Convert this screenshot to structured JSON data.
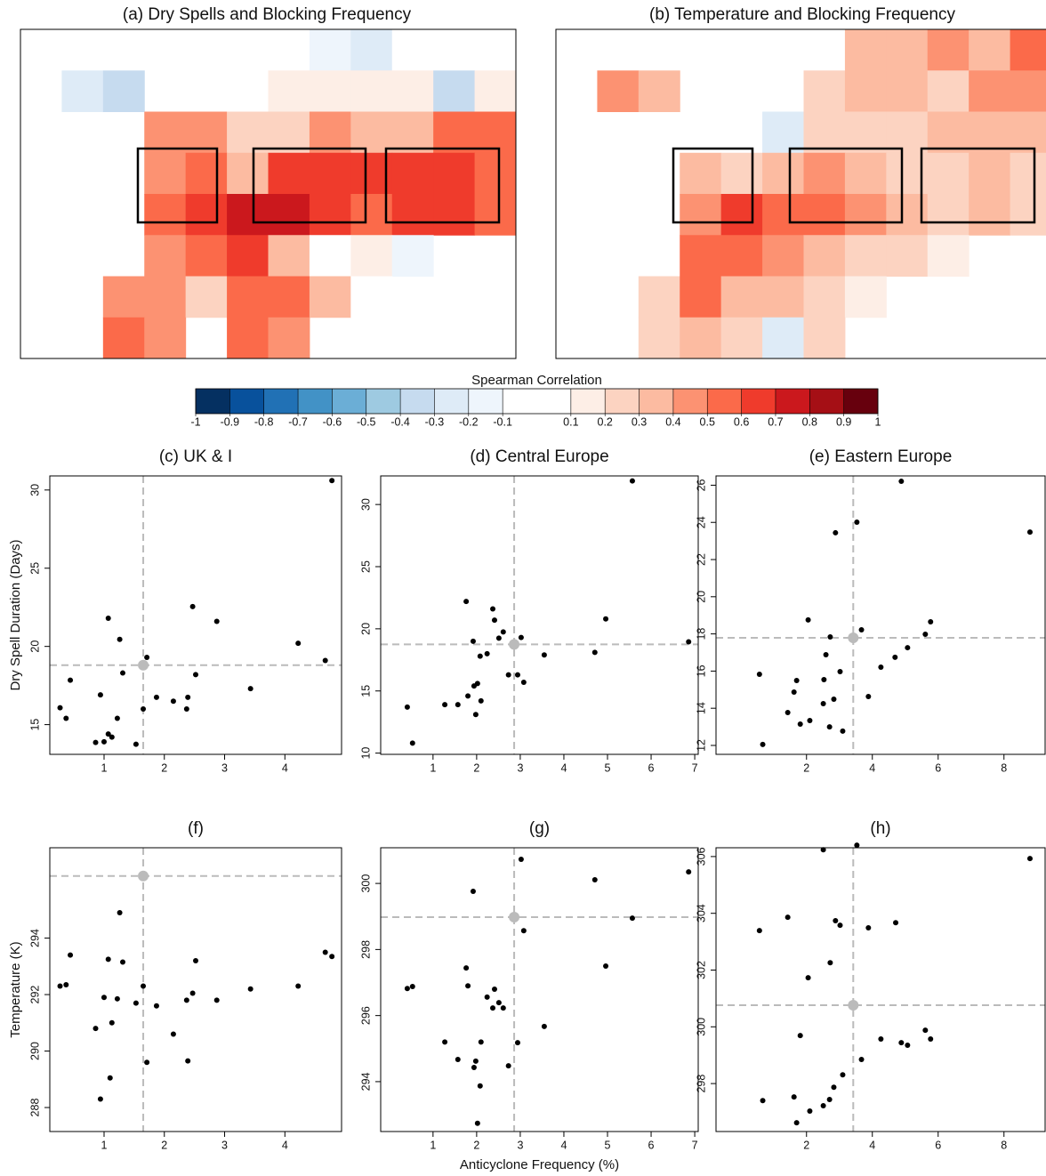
{
  "chart_data": [
    {
      "type": "heatmap",
      "title": "(a) Dry Spells and Blocking Frequency",
      "values": [
        [
          null,
          null,
          null,
          null,
          null,
          null,
          null,
          -0.2,
          -0.3,
          -0.1,
          null,
          null
        ],
        [
          null,
          -0.3,
          -0.4,
          null,
          null,
          null,
          0.1,
          0.1,
          0.1,
          0.1,
          -0.4,
          0.1
        ],
        [
          null,
          null,
          null,
          0.4,
          0.4,
          0.2,
          0.2,
          0.4,
          0.3,
          0.3,
          0.5,
          0.5
        ],
        [
          null,
          null,
          null,
          0.4,
          0.5,
          0.3,
          0.6,
          0.6,
          0.6,
          0.6,
          0.6,
          0.5
        ],
        [
          null,
          null,
          null,
          0.5,
          0.6,
          0.7,
          0.7,
          0.6,
          0.5,
          0.6,
          0.6,
          0.5
        ],
        [
          null,
          null,
          null,
          0.4,
          0.5,
          0.6,
          0.3,
          -0.1,
          0.1,
          -0.2,
          null,
          null
        ],
        [
          null,
          null,
          0.4,
          0.4,
          0.2,
          0.5,
          0.5,
          0.3,
          -0.1,
          null,
          null,
          null
        ],
        [
          null,
          null,
          0.5,
          0.4,
          null,
          0.5,
          0.4,
          null,
          null,
          null,
          null,
          null
        ]
      ]
    },
    {
      "type": "heatmap",
      "title": "(b) Temperature and Blocking Frequency",
      "values": [
        [
          null,
          null,
          null,
          null,
          null,
          null,
          null,
          0.3,
          0.3,
          0.4,
          0.3,
          0.5
        ],
        [
          null,
          0.4,
          0.3,
          null,
          null,
          null,
          0.2,
          0.3,
          0.3,
          0.2,
          0.4,
          0.4
        ],
        [
          null,
          null,
          null,
          null,
          null,
          -0.3,
          0.2,
          0.2,
          0.2,
          0.3,
          0.3,
          0.3
        ],
        [
          null,
          null,
          null,
          0.3,
          0.2,
          0.3,
          0.4,
          0.3,
          0.2,
          0.2,
          0.3,
          0.2
        ],
        [
          null,
          null,
          null,
          0.4,
          0.6,
          0.5,
          0.5,
          0.4,
          0.3,
          0.2,
          0.3,
          0.2
        ],
        [
          null,
          null,
          null,
          0.5,
          0.5,
          0.4,
          0.3,
          0.2,
          0.2,
          0.1,
          null,
          null
        ],
        [
          null,
          null,
          0.2,
          0.5,
          0.3,
          0.3,
          0.2,
          0.1,
          null,
          null,
          null,
          null
        ],
        [
          null,
          null,
          0.2,
          0.3,
          0.2,
          -0.3,
          0.2,
          null,
          null,
          null,
          null,
          null
        ]
      ]
    },
    {
      "type": "colorbar",
      "title": "Spearman Correlation",
      "ticks": [
        -1,
        -0.9,
        -0.8,
        -0.7,
        -0.6,
        -0.5,
        -0.4,
        -0.3,
        -0.2,
        -0.1,
        0.1,
        0.2,
        0.3,
        0.4,
        0.5,
        0.6,
        0.7,
        0.8,
        0.9,
        1
      ],
      "tick_positions": [
        -1,
        -0.9,
        -0.8,
        -0.7,
        -0.6,
        -0.5,
        -0.4,
        -0.3,
        -0.2,
        -0.1,
        0.1,
        0.2,
        0.3,
        0.4,
        0.5,
        0.6,
        0.7,
        0.8,
        0.9,
        1
      ],
      "lim": [
        -1,
        1
      ],
      "colors": [
        "#053061",
        "#08519c",
        "#2171b5",
        "#4292c6",
        "#6baed6",
        "#9ecae1",
        "#c6dbef",
        "#deebf7",
        "#eef5fc",
        "#ffffff",
        "#ffffff",
        "#fdeee6",
        "#fcd3c1",
        "#fcbba1",
        "#fc9272",
        "#fb6a4a",
        "#ef3b2c",
        "#cb181d",
        "#a50f15",
        "#67000d"
      ]
    },
    {
      "type": "scatter",
      "title": "(c) UK & I",
      "y_label": "Dry Spell Duration (Days)",
      "color": "#000000",
      "mean_color": "#bbbbbb",
      "x": [
        0.27,
        0.37,
        0.44,
        0.86,
        0.94,
        1.0,
        1.07,
        1.07,
        1.13,
        1.22,
        1.26,
        1.31,
        1.53,
        1.65,
        1.71,
        1.87,
        2.15,
        2.37,
        2.39,
        2.47,
        2.52,
        2.87,
        3.43,
        4.22,
        4.67,
        4.78
      ],
      "y": [
        16.08,
        15.4,
        17.84,
        13.86,
        16.9,
        13.9,
        21.8,
        14.4,
        14.2,
        15.4,
        20.45,
        18.3,
        13.75,
        16.0,
        19.3,
        16.75,
        16.5,
        16.0,
        16.75,
        22.55,
        18.2,
        21.6,
        17.3,
        20.2,
        19.1,
        30.6
      ],
      "mean": {
        "x": 1.65,
        "y": 18.8
      },
      "xlim": [
        0.1,
        4.94
      ],
      "ylim": [
        13.1,
        30.9
      ],
      "xticks": [
        1,
        2,
        3,
        4
      ],
      "yticks": [
        15,
        20,
        25,
        30
      ]
    },
    {
      "type": "scatter",
      "title": "(d) Central Europe",
      "color": "#000000",
      "mean_color": "#bbbbbb",
      "x": [
        0.41,
        0.53,
        1.27,
        1.57,
        1.76,
        1.8,
        1.92,
        1.94,
        1.98,
        2.02,
        2.08,
        2.1,
        2.24,
        2.37,
        2.41,
        2.51,
        2.61,
        2.73,
        2.94,
        3.02,
        3.08,
        3.55,
        4.71,
        4.96,
        5.57,
        6.86
      ],
      "y": [
        13.7,
        10.8,
        13.9,
        13.9,
        22.2,
        14.6,
        19.0,
        15.4,
        13.1,
        15.6,
        17.8,
        14.2,
        18.0,
        21.6,
        20.7,
        19.25,
        19.75,
        16.3,
        16.3,
        19.3,
        15.7,
        17.9,
        18.1,
        20.8,
        31.9,
        18.95
      ],
      "mean": {
        "x": 2.86,
        "y": 18.75
      },
      "xlim": [
        -0.2,
        7.08
      ],
      "ylim": [
        9.9,
        32.3
      ],
      "xticks": [
        1,
        2,
        3,
        4,
        5,
        6,
        7
      ],
      "yticks": [
        10,
        15,
        20,
        25,
        30
      ]
    },
    {
      "type": "scatter",
      "title": "(e) Eastern Europe",
      "color": "#000000",
      "mean_color": "#bbbbbb",
      "x": [
        0.57,
        0.67,
        1.43,
        1.62,
        1.7,
        1.81,
        2.05,
        2.1,
        2.51,
        2.53,
        2.59,
        2.7,
        2.72,
        2.83,
        2.88,
        3.02,
        3.1,
        3.53,
        3.67,
        3.88,
        4.26,
        4.69,
        4.88,
        5.07,
        5.61,
        5.77,
        8.79
      ],
      "y": [
        15.83,
        12.05,
        13.77,
        14.87,
        15.49,
        13.15,
        18.75,
        13.34,
        14.25,
        15.54,
        16.88,
        13.0,
        17.84,
        14.49,
        23.44,
        15.97,
        12.77,
        24.01,
        18.22,
        14.63,
        16.21,
        16.74,
        26.21,
        17.26,
        17.98,
        18.65,
        23.48
      ],
      "mean": {
        "x": 3.42,
        "y": 17.79
      },
      "xlim": [
        -0.75,
        9.25
      ],
      "ylim": [
        11.52,
        26.5
      ],
      "xticks": [
        2,
        4,
        6,
        8
      ],
      "yticks": [
        12,
        14,
        16,
        18,
        20,
        22,
        24,
        26
      ]
    },
    {
      "type": "scatter",
      "title": "(f)",
      "y_label": "Temperature (K)",
      "color": "#000000",
      "mean_color": "#bbbbbb",
      "x": [
        0.27,
        0.37,
        0.44,
        0.86,
        0.94,
        1.0,
        1.07,
        1.1,
        1.13,
        1.22,
        1.26,
        1.31,
        1.53,
        1.65,
        1.71,
        1.87,
        2.15,
        2.37,
        2.39,
        2.47,
        2.52,
        2.87,
        3.43,
        4.22,
        4.67,
        4.78
      ],
      "y": [
        292.3,
        292.35,
        293.4,
        290.8,
        288.3,
        291.9,
        293.25,
        289.05,
        291.0,
        291.85,
        294.9,
        293.15,
        291.7,
        292.3,
        289.6,
        291.6,
        290.6,
        291.8,
        289.65,
        292.05,
        293.2,
        291.8,
        292.2,
        292.3,
        293.5,
        293.35
      ],
      "mean": {
        "x": 1.65,
        "y": 296.2
      },
      "xlim": [
        0.1,
        4.94
      ],
      "ylim": [
        287.15,
        297.2
      ],
      "xticks": [
        1,
        2,
        3,
        4
      ],
      "yticks": [
        288,
        290,
        292,
        294
      ]
    },
    {
      "type": "scatter",
      "title": "(g)",
      "x_label": "Anticyclone Frequency (%)",
      "color": "#000000",
      "mean_color": "#bbbbbb",
      "x": [
        0.41,
        0.53,
        1.27,
        1.57,
        1.76,
        1.8,
        1.92,
        1.94,
        1.98,
        2.02,
        2.08,
        2.1,
        2.24,
        2.37,
        2.41,
        2.51,
        2.61,
        2.73,
        2.94,
        3.02,
        3.08,
        3.55,
        4.71,
        4.96,
        5.57,
        6.86
      ],
      "y": [
        296.82,
        296.88,
        295.2,
        294.67,
        297.44,
        296.9,
        299.76,
        294.43,
        294.62,
        292.74,
        293.87,
        295.2,
        296.56,
        296.23,
        296.8,
        296.39,
        296.23,
        294.48,
        295.18,
        300.73,
        298.57,
        295.67,
        300.11,
        297.5,
        298.95,
        300.35
      ],
      "mean": {
        "x": 2.86,
        "y": 298.98
      },
      "xlim": [
        -0.2,
        7.08
      ],
      "ylim": [
        292.49,
        301.08
      ],
      "xticks": [
        1,
        2,
        3,
        4,
        5,
        6,
        7
      ],
      "yticks": [
        294,
        296,
        298,
        300
      ]
    },
    {
      "type": "scatter",
      "title": "(h)",
      "color": "#000000",
      "mean_color": "#bbbbbb",
      "x": [
        0.57,
        0.67,
        1.43,
        1.62,
        1.7,
        1.81,
        2.05,
        2.1,
        2.51,
        2.51,
        2.7,
        2.72,
        2.83,
        2.88,
        3.02,
        3.1,
        3.53,
        3.67,
        3.88,
        4.26,
        4.71,
        4.88,
        5.07,
        5.61,
        5.77,
        8.79
      ],
      "y": [
        303.39,
        297.4,
        303.86,
        297.53,
        296.62,
        299.69,
        301.73,
        297.03,
        297.22,
        306.24,
        297.44,
        302.26,
        297.87,
        303.74,
        303.58,
        298.31,
        306.4,
        298.85,
        303.49,
        299.57,
        303.67,
        299.44,
        299.35,
        299.88,
        299.57,
        305.93
      ],
      "mean": {
        "x": 3.42,
        "y": 300.76
      },
      "xlim": [
        -0.75,
        9.25
      ],
      "ylim": [
        296.31,
        306.31
      ],
      "xticks": [
        2,
        4,
        6,
        8
      ],
      "yticks": [
        298,
        300,
        302,
        304,
        306
      ]
    }
  ]
}
